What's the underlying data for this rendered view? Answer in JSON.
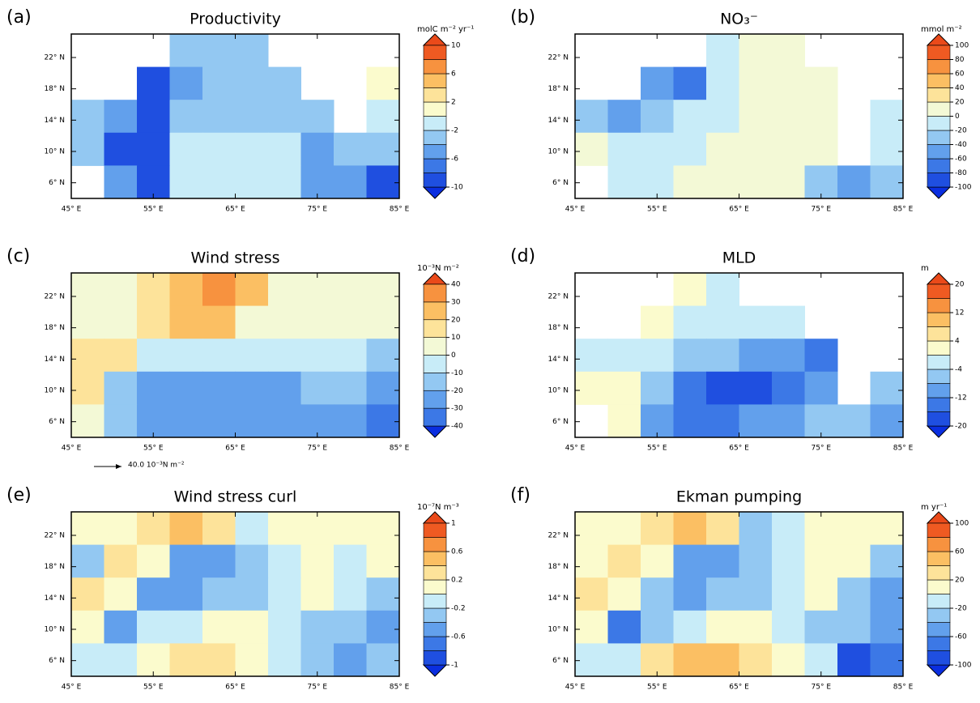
{
  "chart_data": [
    {
      "type": "heatmap",
      "label": "(a)",
      "title": "Productivity",
      "units": "molC m⁻² yr⁻¹",
      "xlim": [
        45,
        85
      ],
      "xticks": [
        {
          "value": 45,
          "label": "45° E"
        },
        {
          "value": 55,
          "label": "55° E"
        },
        {
          "value": 65,
          "label": "65° E"
        },
        {
          "value": 75,
          "label": "75° E"
        },
        {
          "value": 85,
          "label": "85° E"
        }
      ],
      "ylim": [
        4,
        25
      ],
      "yticks": [
        {
          "value": 6,
          "label": "6° N"
        },
        {
          "value": 10,
          "label": "10° N"
        },
        {
          "value": 14,
          "label": "14° N"
        },
        {
          "value": 18,
          "label": "18° N"
        },
        {
          "value": 22,
          "label": "22° N"
        }
      ],
      "levels": [
        10,
        6,
        2,
        -2,
        -6,
        -10
      ],
      "colors": [
        "#1f4fe0",
        "#3c78e6",
        "#62a0ec",
        "#93c8f2",
        "#c8ecf8",
        "#fbfbcd",
        "#fde39a",
        "#fbbf63",
        "#f7923f",
        "#ef5a22"
      ],
      "values": [
        [
          null,
          null,
          null,
          -3,
          -3,
          -3,
          null,
          null,
          null,
          null
        ],
        [
          null,
          null,
          -9,
          -5,
          -3,
          -3,
          -3,
          null,
          null,
          1
        ],
        [
          -4,
          -5,
          -9,
          -4,
          -3,
          -3,
          -3,
          -3,
          null,
          -2
        ],
        [
          -3,
          -9,
          -9,
          -1,
          -1,
          -1,
          -1,
          -5,
          -4,
          -4
        ],
        [
          null,
          -5,
          -9,
          -1,
          -1,
          -1,
          -1,
          -5,
          -6,
          -9
        ]
      ]
    },
    {
      "type": "heatmap",
      "label": "(b)",
      "title": "NO₃⁻",
      "units": "mmol m⁻²",
      "xlim": [
        45,
        85
      ],
      "xticks": [
        {
          "value": 45,
          "label": "45° E"
        },
        {
          "value": 55,
          "label": "55° E"
        },
        {
          "value": 65,
          "label": "65° E"
        },
        {
          "value": 75,
          "label": "75° E"
        },
        {
          "value": 85,
          "label": "85° E"
        }
      ],
      "ylim": [
        4,
        25
      ],
      "yticks": [
        {
          "value": 6,
          "label": "6° N"
        },
        {
          "value": 10,
          "label": "10° N"
        },
        {
          "value": 14,
          "label": "14° N"
        },
        {
          "value": 18,
          "label": "18° N"
        },
        {
          "value": 22,
          "label": "22° N"
        }
      ],
      "levels": [
        100,
        80,
        60,
        40,
        20,
        0,
        -20,
        -40,
        -60,
        -80,
        -100
      ],
      "colors": [
        "#1f4fe0",
        "#3c78e6",
        "#62a0ec",
        "#93c8f2",
        "#c8ecf8",
        "#f3f9d6",
        "#fde39a",
        "#fbbf63",
        "#f7923f",
        "#ef5a22"
      ],
      "values": [
        [
          null,
          null,
          null,
          null,
          -20,
          5,
          5,
          null,
          null,
          null
        ],
        [
          null,
          null,
          -60,
          -80,
          -20,
          5,
          5,
          5,
          null,
          null
        ],
        [
          -40,
          -60,
          -40,
          -20,
          -10,
          5,
          5,
          5,
          null,
          -20
        ],
        [
          5,
          -10,
          -10,
          -10,
          5,
          5,
          5,
          5,
          null,
          -20
        ],
        [
          null,
          -10,
          -10,
          5,
          5,
          5,
          5,
          -40,
          -60,
          -40
        ]
      ]
    },
    {
      "type": "heatmap",
      "label": "(c)",
      "title": "Wind stress",
      "units": "10⁻³N m⁻²",
      "annotation": "40.0 10⁻³N m⁻²",
      "xlim": [
        45,
        85
      ],
      "xticks": [
        {
          "value": 45,
          "label": "45° E"
        },
        {
          "value": 55,
          "label": "55° E"
        },
        {
          "value": 65,
          "label": "65° E"
        },
        {
          "value": 75,
          "label": "75° E"
        },
        {
          "value": 85,
          "label": "85° E"
        }
      ],
      "ylim": [
        4,
        25
      ],
      "yticks": [
        {
          "value": 6,
          "label": "6° N"
        },
        {
          "value": 10,
          "label": "10° N"
        },
        {
          "value": 14,
          "label": "14° N"
        },
        {
          "value": 18,
          "label": "18° N"
        },
        {
          "value": 22,
          "label": "22° N"
        }
      ],
      "levels": [
        40,
        30,
        20,
        10,
        0,
        -10,
        -20,
        -30,
        -40
      ],
      "colors": [
        "#3c78e6",
        "#62a0ec",
        "#93c8f2",
        "#c8ecf8",
        "#f3f9d6",
        "#fde39a",
        "#fbbf63",
        "#f7923f"
      ],
      "values": [
        [
          5,
          5,
          15,
          25,
          35,
          25,
          5,
          5,
          5,
          5
        ],
        [
          5,
          5,
          15,
          25,
          25,
          5,
          5,
          5,
          5,
          5
        ],
        [
          15,
          15,
          -5,
          -5,
          -5,
          -5,
          -5,
          -5,
          -5,
          -15
        ],
        [
          15,
          -15,
          -25,
          -25,
          -25,
          -25,
          -25,
          -15,
          -15,
          -25
        ],
        [
          5,
          -15,
          -25,
          -25,
          -25,
          -25,
          -25,
          -25,
          -30,
          -35
        ]
      ]
    },
    {
      "type": "heatmap",
      "label": "(d)",
      "title": "MLD",
      "units": "m",
      "xlim": [
        45,
        85
      ],
      "xticks": [
        {
          "value": 45,
          "label": "45° E"
        },
        {
          "value": 55,
          "label": "55° E"
        },
        {
          "value": 65,
          "label": "65° E"
        },
        {
          "value": 75,
          "label": "75° E"
        },
        {
          "value": 85,
          "label": "85° E"
        }
      ],
      "ylim": [
        4,
        25
      ],
      "yticks": [
        {
          "value": 6,
          "label": "6° N"
        },
        {
          "value": 10,
          "label": "10° N"
        },
        {
          "value": 14,
          "label": "14° N"
        },
        {
          "value": 18,
          "label": "18° N"
        },
        {
          "value": 22,
          "label": "22° N"
        }
      ],
      "levels": [
        20,
        12,
        4,
        -4,
        -12,
        -20
      ],
      "colors": [
        "#1f4fe0",
        "#3c78e6",
        "#62a0ec",
        "#93c8f2",
        "#c8ecf8",
        "#fbfbcd",
        "#fde39a",
        "#fbbf63",
        "#f7923f",
        "#ef5a22"
      ],
      "values": [
        [
          null,
          null,
          null,
          2,
          -2,
          null,
          null,
          null,
          null,
          null
        ],
        [
          null,
          null,
          2,
          -2,
          -2,
          -2,
          -2,
          null,
          null,
          null
        ],
        [
          -2,
          -2,
          -2,
          -6,
          -6,
          -10,
          -10,
          -14,
          null,
          null
        ],
        [
          2,
          2,
          -6,
          -14,
          -18,
          -18,
          -14,
          -10,
          null,
          -6
        ],
        [
          null,
          2,
          -10,
          -14,
          -14,
          -10,
          -10,
          -6,
          -6,
          -10
        ]
      ]
    },
    {
      "type": "heatmap",
      "label": "(e)",
      "title": "Wind stress curl",
      "units": "10⁻⁷N m⁻³",
      "xlim": [
        45,
        85
      ],
      "xticks": [
        {
          "value": 45,
          "label": "45° E"
        },
        {
          "value": 55,
          "label": "55° E"
        },
        {
          "value": 65,
          "label": "65° E"
        },
        {
          "value": 75,
          "label": "75° E"
        },
        {
          "value": 85,
          "label": "85° E"
        }
      ],
      "ylim": [
        4,
        25
      ],
      "yticks": [
        {
          "value": 6,
          "label": "6° N"
        },
        {
          "value": 10,
          "label": "10° N"
        },
        {
          "value": 14,
          "label": "14° N"
        },
        {
          "value": 18,
          "label": "18° N"
        },
        {
          "value": 22,
          "label": "22° N"
        }
      ],
      "levels": [
        1,
        0.6,
        0.2,
        -0.2,
        -0.6,
        -1
      ],
      "colors": [
        "#1f4fe0",
        "#3c78e6",
        "#62a0ec",
        "#93c8f2",
        "#c8ecf8",
        "#fbfbcd",
        "#fde39a",
        "#fbbf63",
        "#f7923f",
        "#ef5a22"
      ],
      "values": [
        [
          0.1,
          0.1,
          0.3,
          0.5,
          0.3,
          -0.1,
          0.1,
          0.1,
          0.1,
          0.1
        ],
        [
          -0.3,
          0.3,
          0.1,
          -0.5,
          -0.5,
          -0.3,
          -0.1,
          0.1,
          -0.1,
          0.1
        ],
        [
          0.3,
          0.1,
          -0.5,
          -0.5,
          -0.3,
          -0.3,
          -0.1,
          0.1,
          -0.1,
          -0.3
        ],
        [
          0.1,
          -0.5,
          -0.1,
          -0.1,
          0.1,
          0.1,
          -0.1,
          -0.3,
          -0.3,
          -0.5
        ],
        [
          -0.1,
          -0.1,
          0.1,
          0.3,
          0.3,
          0.1,
          -0.1,
          -0.3,
          -0.5,
          -0.3
        ]
      ]
    },
    {
      "type": "heatmap",
      "label": "(f)",
      "title": "Ekman pumping",
      "units": "m yr⁻¹",
      "xlim": [
        45,
        85
      ],
      "xticks": [
        {
          "value": 45,
          "label": "45° E"
        },
        {
          "value": 55,
          "label": "55° E"
        },
        {
          "value": 65,
          "label": "65° E"
        },
        {
          "value": 75,
          "label": "75° E"
        },
        {
          "value": 85,
          "label": "85° E"
        }
      ],
      "ylim": [
        4,
        25
      ],
      "yticks": [
        {
          "value": 6,
          "label": "6° N"
        },
        {
          "value": 10,
          "label": "10° N"
        },
        {
          "value": 14,
          "label": "14° N"
        },
        {
          "value": 18,
          "label": "18° N"
        },
        {
          "value": 22,
          "label": "22° N"
        }
      ],
      "levels": [
        100,
        60,
        20,
        -20,
        -60,
        -100
      ],
      "colors": [
        "#1f4fe0",
        "#3c78e6",
        "#62a0ec",
        "#93c8f2",
        "#c8ecf8",
        "#fbfbcd",
        "#fde39a",
        "#fbbf63",
        "#f7923f",
        "#ef5a22"
      ],
      "values": [
        [
          10,
          10,
          30,
          50,
          30,
          -30,
          -10,
          10,
          10,
          10
        ],
        [
          10,
          30,
          10,
          -50,
          -50,
          -30,
          -10,
          10,
          10,
          -30
        ],
        [
          30,
          10,
          -30,
          -50,
          -30,
          -30,
          -10,
          10,
          -30,
          -50
        ],
        [
          10,
          -70,
          -30,
          -10,
          10,
          10,
          -10,
          -30,
          -30,
          -50
        ],
        [
          -10,
          -10,
          30,
          50,
          50,
          30,
          10,
          -10,
          -90,
          -70
        ]
      ]
    }
  ],
  "under_color": "#0a2ee0",
  "over_color": "#ea4a1a"
}
